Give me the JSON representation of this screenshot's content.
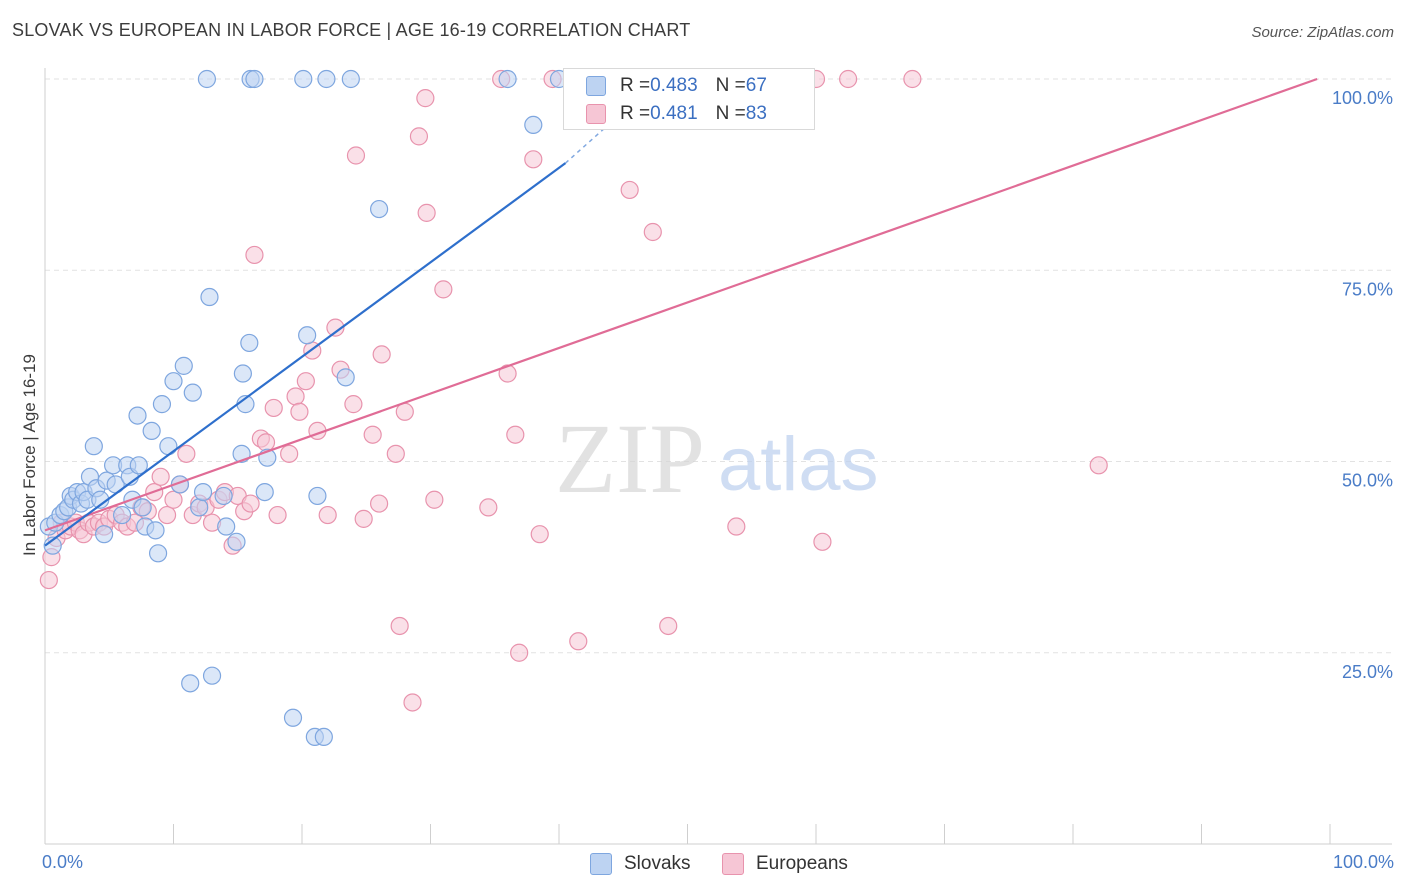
{
  "title": "SLOVAK VS EUROPEAN IN LABOR FORCE | AGE 16-19 CORRELATION CHART",
  "source": "Source: ZipAtlas.com",
  "watermark": {
    "zip": "ZIP",
    "atlas": "atlas"
  },
  "legend": {
    "slovaks": {
      "r_label": "R = ",
      "r_value": "0.483",
      "n_label": "N = ",
      "n_value": "67"
    },
    "europeans": {
      "r_label": "R = ",
      "r_value": "0.481",
      "n_label": "N = ",
      "n_value": "83"
    }
  },
  "bottom_legend": {
    "slovaks": "Slovaks",
    "europeans": "Europeans"
  },
  "chart_data": {
    "type": "scatter",
    "title": "SLOVAK VS EUROPEAN IN LABOR FORCE | AGE 16-19 CORRELATION CHART",
    "xlabel": "",
    "ylabel": "In Labor Force | Age 16-19",
    "xlim": [
      0,
      100
    ],
    "ylim": [
      0,
      100
    ],
    "x_tick_labels": [
      "0.0%",
      "100.0%"
    ],
    "y_ticks": [
      25,
      50,
      75,
      100
    ],
    "y_tick_labels": [
      "25.0%",
      "50.0%",
      "75.0%",
      "100.0%"
    ],
    "grid": true,
    "colors": {
      "slovaks": "#7ea6df",
      "slovaks_fill": "#bdd3f2",
      "slovaks_line": "#2e6fcc",
      "europeans": "#e893ad",
      "europeans_fill": "#f6c6d5",
      "europeans_line": "#e06c96",
      "axis_text": "#4a7cc7"
    },
    "series": [
      {
        "name": "Slovaks",
        "points": [
          [
            0.3,
            41.5
          ],
          [
            0.6,
            39
          ],
          [
            0.8,
            42
          ],
          [
            1.2,
            43
          ],
          [
            1.5,
            43.5
          ],
          [
            1.8,
            44
          ],
          [
            2,
            45.5
          ],
          [
            2.2,
            45
          ],
          [
            2.5,
            46
          ],
          [
            2.8,
            44.5
          ],
          [
            3,
            46
          ],
          [
            3.3,
            45
          ],
          [
            3.5,
            48
          ],
          [
            3.8,
            52
          ],
          [
            4,
            46.5
          ],
          [
            4.3,
            45
          ],
          [
            4.6,
            40.5
          ],
          [
            4.8,
            47.5
          ],
          [
            5.3,
            49.5
          ],
          [
            5.5,
            47
          ],
          [
            6,
            43
          ],
          [
            6.4,
            49.5
          ],
          [
            6.6,
            48
          ],
          [
            6.8,
            45
          ],
          [
            7.2,
            56
          ],
          [
            7.3,
            49.5
          ],
          [
            7.6,
            44
          ],
          [
            7.8,
            41.5
          ],
          [
            8.3,
            54
          ],
          [
            8.6,
            41
          ],
          [
            8.8,
            38
          ],
          [
            9.1,
            57.5
          ],
          [
            9.6,
            52
          ],
          [
            10,
            60.5
          ],
          [
            10.5,
            47
          ],
          [
            10.8,
            62.5
          ],
          [
            11.3,
            21
          ],
          [
            11.5,
            59
          ],
          [
            12,
            44
          ],
          [
            12.3,
            46
          ],
          [
            12.6,
            100
          ],
          [
            12.8,
            71.5
          ],
          [
            13,
            22
          ],
          [
            13.9,
            45.5
          ],
          [
            14.1,
            41.5
          ],
          [
            14.9,
            39.5
          ],
          [
            15.3,
            51
          ],
          [
            15.4,
            61.5
          ],
          [
            15.6,
            57.5
          ],
          [
            15.9,
            65.5
          ],
          [
            16,
            100
          ],
          [
            16.3,
            100
          ],
          [
            17.1,
            46
          ],
          [
            17.3,
            50.5
          ],
          [
            19.3,
            16.5
          ],
          [
            20.1,
            100
          ],
          [
            20.4,
            66.5
          ],
          [
            21,
            14
          ],
          [
            21.2,
            45.5
          ],
          [
            21.7,
            14
          ],
          [
            21.9,
            100
          ],
          [
            23.4,
            61
          ],
          [
            23.8,
            100
          ],
          [
            26,
            83
          ],
          [
            36,
            100
          ],
          [
            38,
            94
          ],
          [
            40,
            100
          ]
        ]
      },
      {
        "name": "Europeans",
        "points": [
          [
            0.3,
            34.5
          ],
          [
            0.5,
            37.5
          ],
          [
            0.9,
            40
          ],
          [
            1.3,
            42
          ],
          [
            1.6,
            41
          ],
          [
            2,
            41.5
          ],
          [
            2.4,
            42
          ],
          [
            2.7,
            41
          ],
          [
            3,
            40.5
          ],
          [
            3.4,
            42
          ],
          [
            3.8,
            41.5
          ],
          [
            4.2,
            42
          ],
          [
            4.6,
            41.5
          ],
          [
            5,
            42.5
          ],
          [
            5.5,
            43
          ],
          [
            6,
            42
          ],
          [
            6.4,
            41.5
          ],
          [
            7,
            42
          ],
          [
            7.5,
            44
          ],
          [
            8,
            43.5
          ],
          [
            8.5,
            46
          ],
          [
            9,
            48
          ],
          [
            9.5,
            43
          ],
          [
            10,
            45
          ],
          [
            10.5,
            47
          ],
          [
            11,
            51
          ],
          [
            11.5,
            43
          ],
          [
            12,
            44.5
          ],
          [
            12.5,
            44
          ],
          [
            13,
            42
          ],
          [
            13.5,
            45
          ],
          [
            14,
            46
          ],
          [
            14.6,
            39
          ],
          [
            15,
            45.5
          ],
          [
            15.5,
            43.5
          ],
          [
            16,
            44.5
          ],
          [
            16.3,
            77
          ],
          [
            16.8,
            53
          ],
          [
            17.2,
            52.5
          ],
          [
            17.8,
            57
          ],
          [
            18.1,
            43
          ],
          [
            19,
            51
          ],
          [
            19.5,
            58.5
          ],
          [
            19.8,
            56.5
          ],
          [
            20.3,
            60.5
          ],
          [
            20.8,
            64.5
          ],
          [
            21.2,
            54
          ],
          [
            22,
            43
          ],
          [
            22.6,
            67.5
          ],
          [
            23,
            62
          ],
          [
            24,
            57.5
          ],
          [
            24.2,
            90
          ],
          [
            24.8,
            42.5
          ],
          [
            25.5,
            53.5
          ],
          [
            26,
            44.5
          ],
          [
            26.2,
            64
          ],
          [
            27.3,
            51
          ],
          [
            27.6,
            28.5
          ],
          [
            28,
            56.5
          ],
          [
            28.6,
            18.5
          ],
          [
            29.1,
            92.5
          ],
          [
            29.6,
            97.5
          ],
          [
            29.7,
            82.5
          ],
          [
            30.3,
            45
          ],
          [
            31,
            72.5
          ],
          [
            34.5,
            44
          ],
          [
            35.5,
            100
          ],
          [
            36,
            61.5
          ],
          [
            36.6,
            53.5
          ],
          [
            36.9,
            25
          ],
          [
            38,
            89.5
          ],
          [
            38.5,
            40.5
          ],
          [
            39.5,
            100
          ],
          [
            41.5,
            26.5
          ],
          [
            45.5,
            85.5
          ],
          [
            47.3,
            80
          ],
          [
            48.5,
            28.5
          ],
          [
            53.8,
            41.5
          ],
          [
            60,
            100
          ],
          [
            60.5,
            39.5
          ],
          [
            62.5,
            100
          ],
          [
            67.5,
            100
          ],
          [
            82,
            49.5
          ]
        ]
      }
    ],
    "trendlines": [
      {
        "name": "Slovaks",
        "solid_from": [
          0,
          39
        ],
        "solid_to": [
          40.5,
          89
        ],
        "dashed_to": [
          44.5,
          95
        ]
      },
      {
        "name": "Europeans",
        "from": [
          0,
          41
        ],
        "to": [
          99,
          100
        ]
      }
    ]
  }
}
